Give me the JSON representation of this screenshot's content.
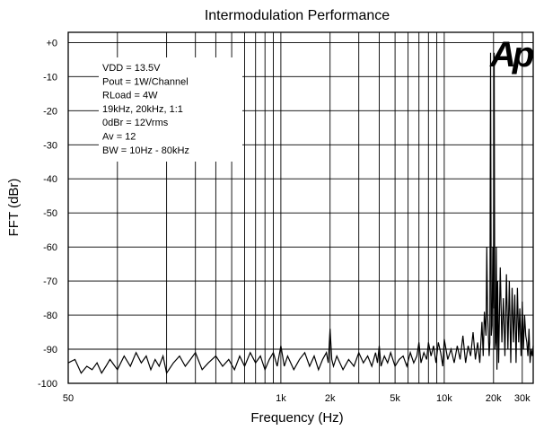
{
  "chart_data": {
    "type": "line",
    "title": "Intermodulation Performance",
    "xlabel": "Frequency (Hz)",
    "ylabel": "FFT (dBr)",
    "xscale": "log",
    "xlim": [
      50,
      35000
    ],
    "ylim": [
      -100,
      3
    ],
    "grid": true,
    "x_ticks": [
      {
        "value": 50,
        "label": "50"
      },
      {
        "value": 1000,
        "label": "1k"
      },
      {
        "value": 2000,
        "label": "2k"
      },
      {
        "value": 5000,
        "label": "5k"
      },
      {
        "value": 10000,
        "label": "10k"
      },
      {
        "value": 20000,
        "label": "20k"
      },
      {
        "value": 30000,
        "label": "30k"
      }
    ],
    "x_gridlines": [
      100,
      200,
      300,
      400,
      500,
      600,
      700,
      800,
      900,
      1000,
      2000,
      3000,
      4000,
      5000,
      6000,
      7000,
      8000,
      9000,
      10000,
      20000,
      30000
    ],
    "y_ticks": [
      {
        "value": 0,
        "label": "+0"
      },
      {
        "value": -10,
        "label": "-10"
      },
      {
        "value": -20,
        "label": "-20"
      },
      {
        "value": -30,
        "label": "-30"
      },
      {
        "value": -40,
        "label": "-40"
      },
      {
        "value": -50,
        "label": "-50"
      },
      {
        "value": -60,
        "label": "-60"
      },
      {
        "value": -70,
        "label": "-70"
      },
      {
        "value": -80,
        "label": "-80"
      },
      {
        "value": -90,
        "label": "-90"
      },
      {
        "value": -100,
        "label": "-100"
      }
    ],
    "annotation_lines": [
      "VDD = 13.5V",
      "Pout = 1W/Channel",
      "RLoad = 4W",
      "19kHz, 20kHz, 1:1",
      "0dBr = 12Vrms",
      "Av = 12",
      "BW = 10Hz - 80kHz"
    ],
    "logo": "Ap",
    "series": [
      {
        "color": "#000000",
        "x": [
          50,
          55,
          60,
          65,
          70,
          75,
          80,
          85,
          90,
          100,
          110,
          120,
          130,
          140,
          150,
          160,
          170,
          180,
          190,
          200,
          220,
          240,
          260,
          280,
          300,
          330,
          360,
          400,
          440,
          480,
          520,
          560,
          600,
          650,
          700,
          750,
          800,
          850,
          900,
          950,
          1000,
          1050,
          1100,
          1200,
          1300,
          1400,
          1500,
          1600,
          1700,
          1800,
          1900,
          1950,
          2000,
          2050,
          2100,
          2200,
          2400,
          2600,
          2800,
          3000,
          3200,
          3400,
          3600,
          3800,
          3900,
          4000,
          4100,
          4300,
          4500,
          4700,
          5000,
          5300,
          5600,
          5900,
          6200,
          6500,
          6800,
          7000,
          7200,
          7500,
          7800,
          8000,
          8300,
          8600,
          8900,
          9200,
          9500,
          9800,
          10000,
          10500,
          11000,
          11500,
          12000,
          12500,
          13000,
          13500,
          14000,
          14500,
          15000,
          15500,
          16000,
          16500,
          17000,
          17300,
          17600,
          18000,
          18200,
          18400,
          18600,
          18800,
          19000,
          19200,
          19400,
          19600,
          19800,
          20000,
          20200,
          20400,
          20600,
          20800,
          21000,
          21200,
          21500,
          22000,
          22500,
          23000,
          23500,
          24000,
          24500,
          25000,
          25500,
          26000,
          26500,
          27000,
          27500,
          28000,
          28500,
          29000,
          29500,
          30000,
          30500,
          31000,
          31500,
          32000,
          32500,
          33000,
          33500,
          34000,
          34500,
          35000
        ],
        "y": [
          -94,
          -93,
          -97,
          -95,
          -96,
          -94,
          -97,
          -95,
          -93,
          -96,
          -92,
          -95,
          -91,
          -94,
          -92,
          -96,
          -93,
          -95,
          -92,
          -97,
          -94,
          -92,
          -95,
          -93,
          -91,
          -96,
          -94,
          -92,
          -95,
          -93,
          -96,
          -92,
          -95,
          -91,
          -94,
          -92,
          -96,
          -93,
          -91,
          -95,
          -89,
          -95,
          -92,
          -96,
          -93,
          -91,
          -95,
          -92,
          -96,
          -93,
          -91,
          -94,
          -84,
          -93,
          -95,
          -92,
          -96,
          -93,
          -95,
          -91,
          -94,
          -92,
          -95,
          -91,
          -94,
          -89,
          -95,
          -92,
          -94,
          -91,
          -95,
          -93,
          -92,
          -95,
          -91,
          -94,
          -92,
          -88,
          -94,
          -91,
          -93,
          -88,
          -92,
          -89,
          -94,
          -88,
          -91,
          -95,
          -87,
          -93,
          -90,
          -94,
          -89,
          -93,
          -86,
          -94,
          -89,
          -92,
          -85,
          -93,
          -88,
          -94,
          -82,
          -92,
          -79,
          -86,
          -60,
          -80,
          -85,
          -92,
          -88,
          -3,
          -86,
          -83,
          -60,
          -78,
          -3,
          -90,
          -88,
          -60,
          -96,
          -70,
          -94,
          -66,
          -88,
          -75,
          -92,
          -68,
          -90,
          -70,
          -94,
          -72,
          -88,
          -74,
          -94,
          -72,
          -88,
          -78,
          -92,
          -76,
          -90,
          -80,
          -86,
          -88,
          -92,
          -84,
          -94,
          -90,
          -92,
          -89
        ]
      }
    ]
  }
}
